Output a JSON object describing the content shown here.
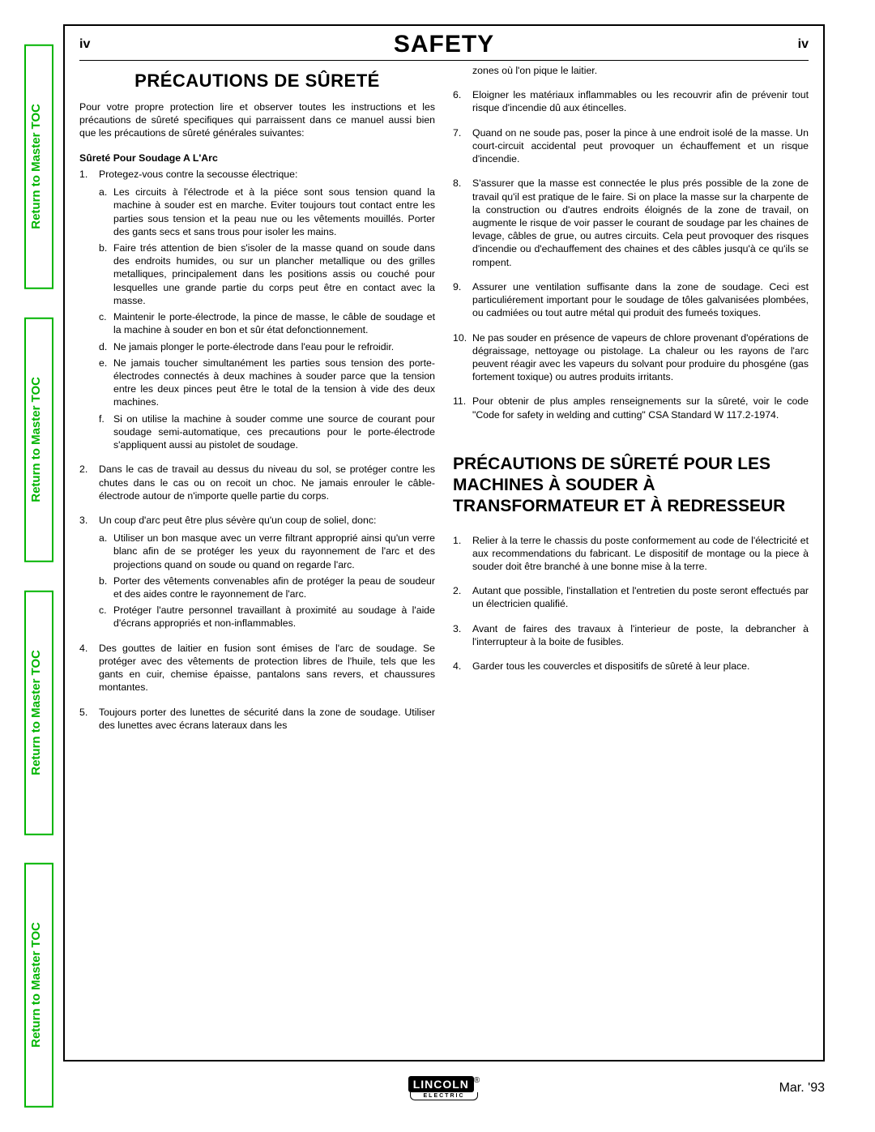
{
  "page_number": "iv",
  "header": "SAFETY",
  "side_tab_label": "Return to Master TOC",
  "section1_title": "PRÉCAUTIONS DE SÛRETÉ",
  "intro": "Pour votre propre protection lire et observer toutes les instructions et les précautions de sûreté specifiques qui parraissent dans ce manuel aussi bien que les précautions de sûreté générales suivantes:",
  "subhead1": "Sûreté Pour Soudage A L'Arc",
  "list1": {
    "i1": {
      "t": "Protegez-vous contre la secousse électrique:",
      "a": "Les circuits à l'électrode et à la piéce sont sous tension quand la machine à souder est en marche. Eviter toujours tout contact entre les parties sous tension et la peau nue ou les vêtements mouillés. Porter des gants secs et sans trous pour isoler les mains.",
      "b": "Faire trés attention de bien s'isoler de la masse quand on soude dans des endroits humides, ou sur un plancher metallique ou des grilles metalliques, principalement dans les positions assis ou couché pour lesquelles une grande partie du corps peut être en contact avec la masse.",
      "c": "Maintenir le porte-électrode, la pince de masse, le câble de soudage et la machine à souder en bon et sûr état defonctionnement.",
      "d": "Ne jamais plonger le porte-électrode dans l'eau pour le refroidir.",
      "e": "Ne jamais toucher simultanément les parties sous tension des porte-électrodes connectés à deux machines à souder parce que la tension entre les deux pinces peut être le total de la tension à vide des deux machines.",
      "f": "Si on utilise la machine à souder comme une source de courant pour soudage semi-automatique, ces precautions pour le porte-électrode s'appliquent aussi au pistolet de soudage."
    },
    "i2": "Dans le cas de travail au dessus du niveau du sol, se protéger contre les chutes dans le cas ou on recoit un choc. Ne jamais enrouler le câble-électrode autour de n'importe quelle partie du corps.",
    "i3": {
      "t": "Un coup d'arc peut être plus sévère qu'un coup de soliel, donc:",
      "a": "Utiliser un bon masque avec un verre filtrant approprié ainsi qu'un verre blanc afin de se protéger les yeux du rayonnement de l'arc et des projections quand on soude ou quand on regarde l'arc.",
      "b": "Porter des vêtements convenables afin de protéger la peau de soudeur et des aides contre le rayonnement de l'arc.",
      "c": "Protéger l'autre personnel travaillant à proximité au soudage à l'aide d'écrans appropriés et non-inflammables."
    },
    "i4": "Des gouttes de laitier en fusion sont émises de l'arc de soudage. Se protéger avec des vêtements de protection libres de l'huile, tels que les gants en cuir, chemise épaisse, pantalons sans revers, et chaussures montantes.",
    "i5": "Toujours porter des lunettes de sécurité dans la zone de soudage. Utiliser des lunettes avec écrans lateraux dans les"
  },
  "list1_cont": {
    "i5b": "zones où l'on pique le laitier.",
    "i6": "Eloigner les matériaux inflammables ou les recouvrir afin de prévenir tout risque d'incendie dû aux étincelles.",
    "i7": "Quand on ne soude pas, poser la pince à une endroit isolé de la masse. Un court-circuit accidental peut provoquer un échauffement et un risque d'incendie.",
    "i8": "S'assurer que la masse est connectée le plus prés possible de la zone de travail qu'il est pratique de le faire. Si on place la masse sur la charpente de la construction ou d'autres endroits éloignés de la zone de travail, on augmente le risque de voir passer le courant de soudage par les chaines de levage, câbles de grue, ou autres circuits. Cela peut provoquer des risques d'incendie ou d'echauffement des chaines et des câbles jusqu'à ce qu'ils se rompent.",
    "i9": "Assurer une ventilation suffisante dans la zone de soudage. Ceci est particuliérement important pour le soudage de tôles galvanisées plombées, ou cadmiées ou tout autre métal qui produit des fumeés toxiques.",
    "i10": "Ne pas souder en présence de vapeurs de chlore provenant d'opérations de dégraissage, nettoyage ou pistolage. La chaleur ou les rayons de l'arc peuvent réagir avec les vapeurs du solvant pour produire du phosgéne (gas fortement toxique) ou autres produits irritants.",
    "i11": "Pour obtenir de plus amples renseignements sur la sûreté, voir le code \"Code for safety in welding and cutting\" CSA Standard W 117.2-1974."
  },
  "section2_title": "PRÉCAUTIONS DE SÛRETÉ POUR LES MACHINES À SOUDER À TRANSFORMATEUR ET À REDRESSEUR",
  "list2": {
    "i1": "Relier à la terre le chassis du poste conformement au code de l'électricité et aux recommendations du fabricant. Le dispositif de montage ou la piece à souder doit être branché à une bonne mise à la terre.",
    "i2": "Autant que possible, l'installation et l'entretien du poste seront effectués par un électricien qualifié.",
    "i3": "Avant de faires des travaux à l'interieur de poste, la debrancher à l'interrupteur à la boite de fusibles.",
    "i4": "Garder tous les couvercles et dispositifs de sûreté à leur place."
  },
  "footer": {
    "date": "Mar. '93",
    "brand": "LINCOLN",
    "subbrand": "ELECTRIC"
  }
}
